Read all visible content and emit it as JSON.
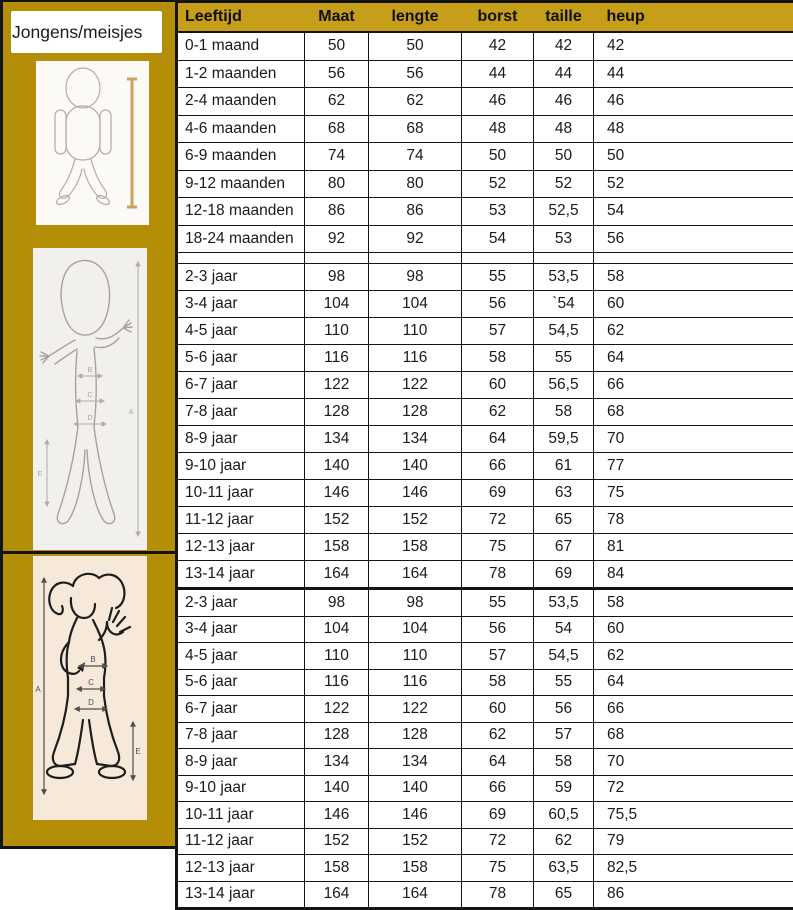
{
  "sidebar": {
    "gender_label": "Jongens/meisjes",
    "figures": {
      "baby": {
        "description": "baby outline with height measuring rod"
      },
      "boy": {
        "labels": {
          "A": "A",
          "B": "B",
          "C": "C",
          "D": "D",
          "E": "E"
        }
      },
      "girl": {
        "labels": {
          "A": "A",
          "B": "B",
          "C": "C",
          "D": "D",
          "E": "E"
        }
      }
    }
  },
  "table": {
    "headers": [
      "Leeftijd",
      "Maat",
      "lengte",
      "borst",
      "taille",
      "heup"
    ],
    "sections": [
      {
        "id": "baby",
        "rows": [
          [
            "0-1 maand",
            "50",
            "50",
            "42",
            "42",
            "42"
          ],
          [
            "1-2 maanden",
            "56",
            "56",
            "44",
            "44",
            "44"
          ],
          [
            "2-4 maanden",
            "62",
            "62",
            "46",
            "46",
            "46"
          ],
          [
            "4-6 maanden",
            "68",
            "68",
            "48",
            "48",
            "48"
          ],
          [
            "6-9 maanden",
            "74",
            "74",
            "50",
            "50",
            "50"
          ],
          [
            "9-12 maanden",
            "80",
            "80",
            "52",
            "52",
            "52"
          ],
          [
            "12-18 maanden",
            "86",
            "86",
            "53",
            "52,5",
            "54"
          ],
          [
            "18-24 maanden",
            "92",
            "92",
            "54",
            "53",
            "56"
          ]
        ]
      },
      {
        "id": "jongens",
        "rows": [
          [
            "2-3 jaar",
            "98",
            "98",
            "55",
            "53,5",
            "58"
          ],
          [
            "3-4 jaar",
            "104",
            "104",
            "56",
            "`54",
            "60"
          ],
          [
            "4-5 jaar",
            "110",
            "110",
            "57",
            "54,5",
            "62"
          ],
          [
            "5-6 jaar",
            "116",
            "116",
            "58",
            "55",
            "64"
          ],
          [
            "6-7 jaar",
            "122",
            "122",
            "60",
            "56,5",
            "66"
          ],
          [
            "7-8 jaar",
            "128",
            "128",
            "62",
            "58",
            "68"
          ],
          [
            "8-9 jaar",
            "134",
            "134",
            "64",
            "59,5",
            "70"
          ],
          [
            "9-10 jaar",
            "140",
            "140",
            "66",
            "61",
            "77"
          ],
          [
            "10-11 jaar",
            "146",
            "146",
            "69",
            "63",
            "75"
          ],
          [
            "11-12 jaar",
            "152",
            "152",
            "72",
            "65",
            "78"
          ],
          [
            "12-13 jaar",
            "158",
            "158",
            "75",
            "67",
            "81"
          ],
          [
            "13-14 jaar",
            "164",
            "164",
            "78",
            "69",
            "84"
          ]
        ]
      },
      {
        "id": "meisjes",
        "rows": [
          [
            "2-3 jaar",
            "98",
            "98",
            "55",
            "53,5",
            "58"
          ],
          [
            "3-4 jaar",
            "104",
            "104",
            "56",
            "54",
            "60"
          ],
          [
            "4-5 jaar",
            "110",
            "110",
            "57",
            "54,5",
            "62"
          ],
          [
            "5-6 jaar",
            "116",
            "116",
            "58",
            "55",
            "64"
          ],
          [
            "6-7 jaar",
            "122",
            "122",
            "60",
            "56",
            "66"
          ],
          [
            "7-8 jaar",
            "128",
            "128",
            "62",
            "57",
            "68"
          ],
          [
            "8-9 jaar",
            "134",
            "134",
            "64",
            "58",
            "70"
          ],
          [
            "9-10 jaar",
            "140",
            "140",
            "66",
            "59",
            "72"
          ],
          [
            "10-11 jaar",
            "146",
            "146",
            "69",
            "60,5",
            "75,5"
          ],
          [
            "11-12 jaar",
            "152",
            "152",
            "72",
            "62",
            "79"
          ],
          [
            "12-13 jaar",
            "158",
            "158",
            "75",
            "63,5",
            "82,5"
          ],
          [
            "13-14 jaar",
            "164",
            "164",
            "78",
            "65",
            "86"
          ]
        ]
      }
    ]
  },
  "colors": {
    "sidebar_gold": "#B58E08",
    "header_gold": "#C79E1A",
    "border_black": "#141414",
    "girl_image_bg": "#F7E9DA",
    "boy_image_bg": "#F1F0ED",
    "measure_rod_tan": "#C9A45B"
  }
}
